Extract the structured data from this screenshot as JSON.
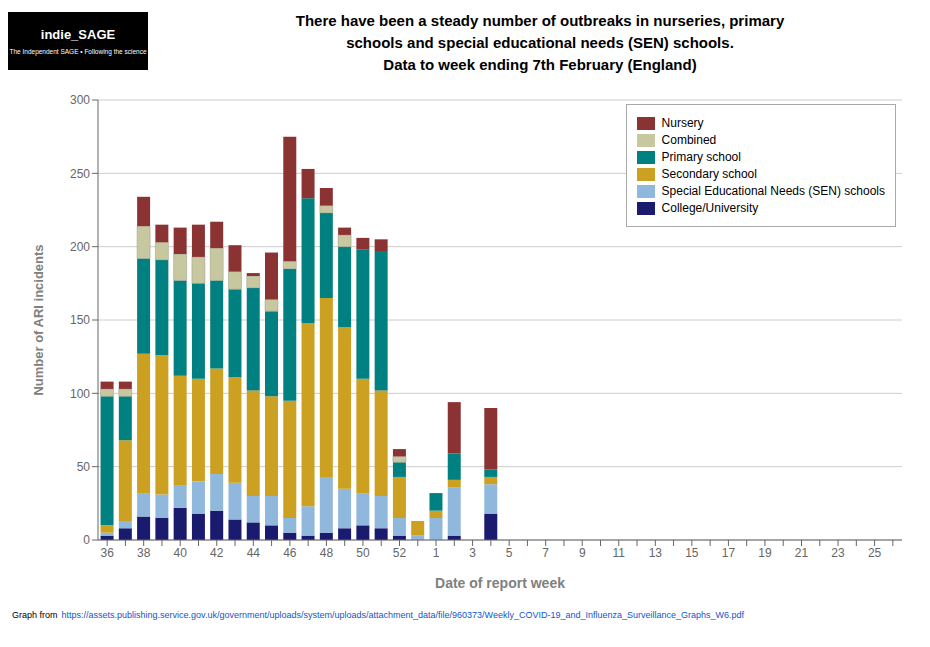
{
  "chart_data": {
    "type": "bar",
    "title": "There have been a steady number of outbreaks in nurseries, primary\nschools and special educational needs (SEN) schools.\nData to week ending 7th February (England)",
    "xlabel": "Date of report week",
    "ylabel": "Number of ARI incidents",
    "categories": [
      "36",
      null,
      "38",
      null,
      "40",
      null,
      "42",
      null,
      "44",
      null,
      "46",
      null,
      "48",
      null,
      "50",
      null,
      "52",
      null,
      "1",
      null,
      "3",
      null,
      "5",
      null,
      "7",
      null,
      "9",
      null,
      "11",
      null,
      "13",
      null,
      "15",
      null,
      "17",
      null,
      "19",
      null,
      "21",
      null,
      "23",
      null,
      "25",
      null
    ],
    "series": [
      {
        "name": "College/University",
        "color": "#1A1A6E",
        "values": [
          3,
          8,
          16,
          15,
          22,
          18,
          20,
          14,
          12,
          10,
          5,
          3,
          5,
          8,
          10,
          8,
          3,
          0,
          0,
          3,
          0,
          18,
          null,
          null,
          null,
          null,
          null,
          null,
          null,
          null,
          null,
          null,
          null,
          null,
          null,
          null,
          null,
          null,
          null,
          null,
          null,
          null,
          null,
          null
        ]
      },
      {
        "name": "Special Educational Needs (SEN) schools",
        "color": "#90B8DC",
        "values": [
          2,
          5,
          16,
          16,
          15,
          22,
          25,
          25,
          18,
          20,
          10,
          20,
          38,
          27,
          22,
          22,
          12,
          3,
          15,
          33,
          0,
          20,
          null,
          null,
          null,
          null,
          null,
          null,
          null,
          null,
          null,
          null,
          null,
          null,
          null,
          null,
          null,
          null,
          null,
          null,
          null,
          null,
          null,
          null
        ]
      },
      {
        "name": "Secondary school",
        "color": "#CCA020",
        "values": [
          5,
          55,
          95,
          95,
          75,
          70,
          72,
          72,
          72,
          68,
          80,
          125,
          122,
          110,
          78,
          72,
          28,
          10,
          5,
          5,
          0,
          5,
          null,
          null,
          null,
          null,
          null,
          null,
          null,
          null,
          null,
          null,
          null,
          null,
          null,
          null,
          null,
          null,
          null,
          null,
          null,
          null,
          null,
          null
        ]
      },
      {
        "name": "Primary school",
        "color": "#008080",
        "values": [
          88,
          30,
          65,
          65,
          65,
          65,
          60,
          60,
          70,
          58,
          90,
          85,
          58,
          55,
          88,
          95,
          10,
          0,
          12,
          18,
          0,
          5,
          null,
          null,
          null,
          null,
          null,
          null,
          null,
          null,
          null,
          null,
          null,
          null,
          null,
          null,
          null,
          null,
          null,
          null,
          null,
          null,
          null,
          null
        ]
      },
      {
        "name": "Combined",
        "color": "#C8C8A0",
        "values": [
          5,
          5,
          22,
          12,
          18,
          18,
          22,
          12,
          8,
          8,
          5,
          0,
          5,
          8,
          0,
          0,
          4,
          0,
          0,
          0,
          0,
          0,
          null,
          null,
          null,
          null,
          null,
          null,
          null,
          null,
          null,
          null,
          null,
          null,
          null,
          null,
          null,
          null,
          null,
          null,
          null,
          null,
          null,
          null
        ]
      },
      {
        "name": "Nursery",
        "color": "#8B3333",
        "values": [
          5,
          5,
          20,
          12,
          18,
          22,
          18,
          18,
          2,
          32,
          85,
          20,
          12,
          5,
          8,
          8,
          5,
          0,
          0,
          35,
          0,
          42,
          null,
          null,
          null,
          null,
          null,
          null,
          null,
          null,
          null,
          null,
          null,
          null,
          null,
          null,
          null,
          null,
          null,
          null,
          null,
          null,
          null,
          null
        ]
      }
    ],
    "stacked": true,
    "ylim": [
      0,
      300
    ],
    "yticks": [
      0,
      50,
      100,
      150,
      200,
      250,
      300
    ],
    "grid": true,
    "legend": "upper right",
    "annotations": [
      "indie_SAGE",
      "The Independent SAGE • Following the science",
      "Graph from",
      "https://assets.publishing.service.gov.uk/government/uploads/system/uploads/attachment_data/file/960373/Weekly_COVID-19_and_Influenza_Surveillance_Graphs_W6.pdf"
    ]
  }
}
